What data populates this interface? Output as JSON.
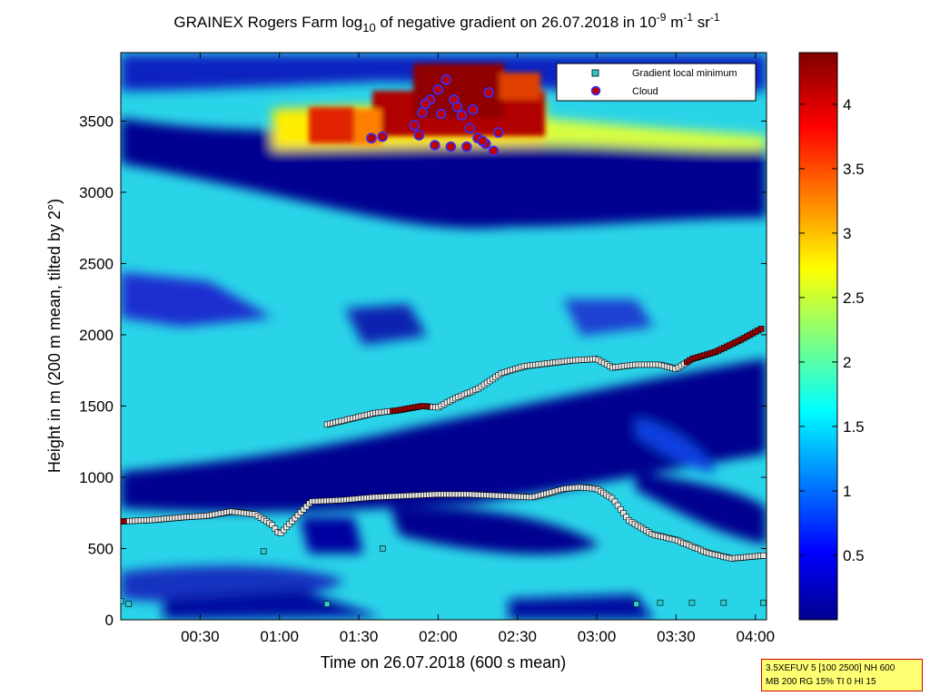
{
  "chart_data": {
    "type": "heatmap",
    "title": {
      "prefix": "GRAINEX Rogers Farm log",
      "sub": "10",
      "mid": " of negative gradient on 26.07.2018 in 10",
      "sup1": "-9",
      "mid2": " m",
      "sup2": "-1",
      "mid3": " sr",
      "sup3": "-1"
    },
    "xlabel": "Time on 26.07.2018 (600 s mean)",
    "ylabel": "Height in m (200 m mean, tilted by 2°)",
    "xlim_hours": [
      0.0,
      4.07
    ],
    "ylim": [
      0,
      3980
    ],
    "x_ticks": [
      {
        "value": 0.5,
        "label": "00:30"
      },
      {
        "value": 1.0,
        "label": "01:00"
      },
      {
        "value": 1.5,
        "label": "01:30"
      },
      {
        "value": 2.0,
        "label": "02:00"
      },
      {
        "value": 2.5,
        "label": "02:30"
      },
      {
        "value": 3.0,
        "label": "03:00"
      },
      {
        "value": 3.5,
        "label": "03:30"
      },
      {
        "value": 4.0,
        "label": "04:00"
      }
    ],
    "y_ticks": [
      0,
      500,
      1000,
      1500,
      2000,
      2500,
      3000,
      3500
    ],
    "colorbar": {
      "lim": [
        0,
        4.4
      ],
      "ticks": [
        0.5,
        1,
        1.5,
        2,
        2.5,
        3,
        3.5,
        4
      ],
      "colormap": "jet"
    },
    "legend": {
      "position": "top-right",
      "entries": [
        {
          "name": "Gradient local minimum",
          "marker": "square",
          "color": "#30c8c8"
        },
        {
          "name": "Cloud",
          "marker": "circle",
          "color": "#c00000"
        }
      ]
    },
    "series": [
      {
        "name": "Gradient local minimum",
        "description_points": "lower layer",
        "x": [
          0.0,
          0.2,
          0.4,
          0.55,
          0.7,
          0.85,
          0.95,
          1.0,
          1.2,
          1.4,
          1.6,
          1.8,
          2.0,
          2.2,
          2.4,
          2.6,
          2.8,
          2.9,
          3.0,
          3.1,
          3.2,
          3.35,
          3.5,
          3.7,
          3.85,
          4.05
        ],
        "y": [
          690,
          700,
          720,
          730,
          760,
          740,
          670,
          600,
          830,
          840,
          860,
          870,
          880,
          880,
          870,
          860,
          920,
          930,
          920,
          850,
          700,
          600,
          560,
          470,
          430,
          450
        ]
      },
      {
        "name": "Gradient local minimum",
        "description_points": "upper layer",
        "x": [
          1.3,
          1.45,
          1.6,
          1.75,
          1.9,
          2.0,
          2.1,
          2.25,
          2.4,
          2.55,
          2.7,
          2.85,
          3.0,
          3.1,
          3.25,
          3.4,
          3.5,
          3.6,
          3.75,
          3.9,
          4.05
        ],
        "y": [
          1370,
          1410,
          1450,
          1470,
          1500,
          1490,
          1550,
          1620,
          1730,
          1780,
          1800,
          1820,
          1830,
          1770,
          1790,
          1790,
          1760,
          1830,
          1880,
          1960,
          2050
        ]
      },
      {
        "name": "Gradient local minimum",
        "description_points": "near surface",
        "x": [
          0.0,
          0.05,
          0.9,
          1.3,
          1.65,
          3.25,
          3.4,
          3.6,
          3.8,
          4.05
        ],
        "y": [
          130,
          110,
          480,
          110,
          500,
          110,
          120,
          120,
          120,
          120
        ]
      },
      {
        "name": "Cloud",
        "x": [
          1.58,
          1.65,
          1.85,
          1.9,
          1.95,
          2.0,
          2.05,
          2.1,
          2.15,
          2.2,
          2.25,
          2.3,
          2.35,
          1.88,
          1.98,
          2.08,
          2.18,
          2.28,
          2.38,
          1.92,
          2.02,
          2.12,
          2.22,
          2.32
        ],
        "y": [
          3380,
          3390,
          3470,
          3560,
          3650,
          3720,
          3790,
          3650,
          3540,
          3450,
          3380,
          3340,
          3290,
          3400,
          3330,
          3320,
          3320,
          3360,
          3420,
          3620,
          3550,
          3600,
          3580,
          3700
        ]
      }
    ]
  },
  "info_box": {
    "line1": "3.5XEFUV 5 [100 2500] NH 600",
    "line2": "MB 200 RG 15% TI 0 HI 15"
  }
}
